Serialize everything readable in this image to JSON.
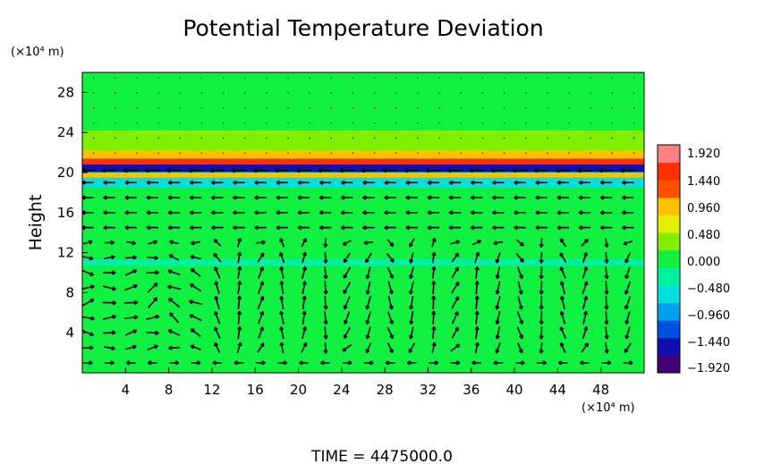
{
  "chart_data": {
    "type": "heatmap",
    "title": "Potential Temperature Deviation",
    "ylabel": "Height",
    "xlabel": "",
    "x_unit_label": "(×10⁴ m)",
    "y_unit_label": "(×10⁴ m)",
    "xlim": [
      0,
      52
    ],
    "ylim": [
      0,
      30
    ],
    "x_ticks": [
      4,
      8,
      12,
      16,
      20,
      24,
      28,
      32,
      36,
      40,
      44,
      48
    ],
    "y_ticks": [
      4,
      8,
      12,
      16,
      20,
      24,
      28
    ],
    "x_tick_labels": [
      "4",
      "8",
      "12",
      "16",
      "20",
      "24",
      "28",
      "32",
      "36",
      "40",
      "44",
      "48"
    ],
    "y_tick_labels": [
      "4",
      "8",
      "12",
      "16",
      "20",
      "24",
      "28"
    ],
    "colorbar": {
      "min": -1.92,
      "max": 1.92,
      "ticks": [
        1.92,
        1.44,
        0.96,
        0.48,
        0.0,
        -0.48,
        -0.96,
        -1.44,
        -1.92
      ],
      "tick_labels": [
        "1.920",
        "1.440",
        "0.960",
        "0.480",
        "0.000",
        "−0.480",
        "−0.960",
        "−1.440",
        "−1.920"
      ],
      "colormap": [
        "#440077",
        "#1010b0",
        "#0050e0",
        "#00a0f0",
        "#00e0e0",
        "#00f0a0",
        "#10f040",
        "#80f000",
        "#e0f000",
        "#ffc000",
        "#ff5000",
        "#ff3000",
        "#ff8080"
      ]
    },
    "background_value": 0.0,
    "features": [
      {
        "kind": "band",
        "y_center": 20.5,
        "y_halfwidth": 0.45,
        "value": -1.6
      },
      {
        "kind": "band",
        "y_center": 21.1,
        "y_halfwidth": 0.3,
        "value": 1.7
      },
      {
        "kind": "band",
        "y_center": 19.6,
        "y_halfwidth": 0.4,
        "value": 1.0
      },
      {
        "kind": "band",
        "y_center": 19.0,
        "y_halfwidth": 0.5,
        "value": -0.5
      },
      {
        "kind": "band",
        "y_center": 21.9,
        "y_halfwidth": 0.5,
        "value": 0.9
      },
      {
        "kind": "band",
        "y_center": 23.2,
        "y_halfwidth": 1.0,
        "value": 0.25
      },
      {
        "kind": "band",
        "y_center": 11.0,
        "y_halfwidth": 0.35,
        "value": -0.35
      }
    ],
    "wind_vectors": {
      "x": [
        0.5,
        2.5,
        4.5,
        6.5,
        8.5,
        10.5,
        12.5,
        14.5,
        16.5,
        18.5,
        20.5,
        22.5,
        24.5,
        26.5,
        28.5,
        30.5,
        32.5,
        34.5,
        36.5,
        38.5,
        40.5,
        42.5,
        44.5,
        46.5,
        48.5,
        50.5
      ],
      "y": [
        1,
        2.5,
        4,
        5.5,
        7,
        8.5,
        10,
        11.5,
        13,
        14.5,
        16,
        17.5,
        19,
        20.2
      ],
      "cells": [
        {
          "x": 0.5,
          "dir": [
            1,
            0
          ]
        },
        {
          "x": 4.5,
          "dir": [
            1,
            0.2
          ]
        },
        {
          "x": 8.5,
          "dir": [
            -1,
            0.3
          ]
        },
        {
          "x": 13.5,
          "dir": [
            0,
            1
          ]
        },
        {
          "x": 19,
          "dir": [
            0.2,
            1
          ]
        },
        {
          "x": 24,
          "dir": [
            -0.3,
            -1
          ]
        },
        {
          "x": 29,
          "dir": [
            0,
            -1
          ]
        },
        {
          "x": 35,
          "dir": [
            0.3,
            1
          ]
        },
        {
          "x": 41,
          "dir": [
            0,
            -1
          ]
        },
        {
          "x": 46,
          "dir": [
            0,
            1
          ]
        },
        {
          "x": 50.5,
          "dir": [
            0,
            -1
          ]
        }
      ]
    }
  },
  "time_label": "TIME  =  4475000.0"
}
